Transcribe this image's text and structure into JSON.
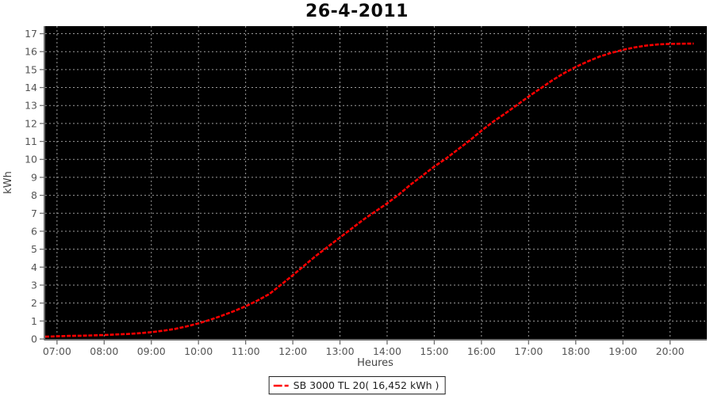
{
  "chart_data": {
    "type": "line",
    "title": "26-4-2011",
    "xlabel": "Heures",
    "ylabel": "kWh",
    "plot_bg": "#000000",
    "grid": "dashed",
    "grid_color": "#9b9b9b",
    "axis_color": "#6e6e6e",
    "tick_label_color": "#555555",
    "axis_label_color": "#444444",
    "legend_position": "bottom",
    "xlim_hours": [
      6.75,
      20.78
    ],
    "ylim": [
      0,
      17.42
    ],
    "x_ticks": [
      {
        "t": 7,
        "label": "07:00"
      },
      {
        "t": 8,
        "label": "08:00"
      },
      {
        "t": 9,
        "label": "09:00"
      },
      {
        "t": 10,
        "label": "10:00"
      },
      {
        "t": 11,
        "label": "11:00"
      },
      {
        "t": 12,
        "label": "12:00"
      },
      {
        "t": 13,
        "label": "13:00"
      },
      {
        "t": 14,
        "label": "14:00"
      },
      {
        "t": 15,
        "label": "15:00"
      },
      {
        "t": 16,
        "label": "16:00"
      },
      {
        "t": 17,
        "label": "17:00"
      },
      {
        "t": 18,
        "label": "18:00"
      },
      {
        "t": 19,
        "label": "19:00"
      },
      {
        "t": 20,
        "label": "20:00"
      }
    ],
    "y_ticks": [
      0,
      1,
      2,
      3,
      4,
      5,
      6,
      7,
      8,
      9,
      10,
      11,
      12,
      13,
      14,
      15,
      16,
      17
    ],
    "series": [
      {
        "name": "SB 3000 TL 20( 16,452 kWh )",
        "color": "#ff0000",
        "total_kwh": "16,452 kWh",
        "points": [
          [
            6.75,
            0.13
          ],
          [
            7.0,
            0.15
          ],
          [
            7.25,
            0.17
          ],
          [
            7.5,
            0.18
          ],
          [
            7.75,
            0.2
          ],
          [
            8.0,
            0.22
          ],
          [
            8.25,
            0.25
          ],
          [
            8.5,
            0.28
          ],
          [
            8.75,
            0.32
          ],
          [
            9.0,
            0.38
          ],
          [
            9.25,
            0.46
          ],
          [
            9.5,
            0.56
          ],
          [
            9.75,
            0.7
          ],
          [
            10.0,
            0.87
          ],
          [
            10.25,
            1.07
          ],
          [
            10.5,
            1.3
          ],
          [
            10.75,
            1.55
          ],
          [
            11.0,
            1.82
          ],
          [
            11.25,
            2.14
          ],
          [
            11.5,
            2.5
          ],
          [
            11.75,
            3.02
          ],
          [
            12.0,
            3.55
          ],
          [
            12.25,
            4.1
          ],
          [
            12.5,
            4.65
          ],
          [
            12.75,
            5.15
          ],
          [
            13.0,
            5.65
          ],
          [
            13.25,
            6.15
          ],
          [
            13.5,
            6.65
          ],
          [
            13.75,
            7.1
          ],
          [
            14.0,
            7.55
          ],
          [
            14.25,
            8.05
          ],
          [
            14.5,
            8.6
          ],
          [
            14.75,
            9.1
          ],
          [
            15.0,
            9.6
          ],
          [
            15.25,
            10.05
          ],
          [
            15.5,
            10.55
          ],
          [
            15.75,
            11.05
          ],
          [
            16.0,
            11.6
          ],
          [
            16.25,
            12.1
          ],
          [
            16.5,
            12.55
          ],
          [
            16.75,
            13.02
          ],
          [
            17.0,
            13.5
          ],
          [
            17.25,
            13.95
          ],
          [
            17.5,
            14.4
          ],
          [
            17.75,
            14.8
          ],
          [
            18.0,
            15.15
          ],
          [
            18.25,
            15.45
          ],
          [
            18.5,
            15.72
          ],
          [
            18.75,
            15.93
          ],
          [
            19.0,
            16.1
          ],
          [
            19.25,
            16.24
          ],
          [
            19.5,
            16.34
          ],
          [
            19.75,
            16.4
          ],
          [
            20.0,
            16.43
          ],
          [
            20.25,
            16.44
          ],
          [
            20.5,
            16.45
          ]
        ]
      }
    ]
  }
}
